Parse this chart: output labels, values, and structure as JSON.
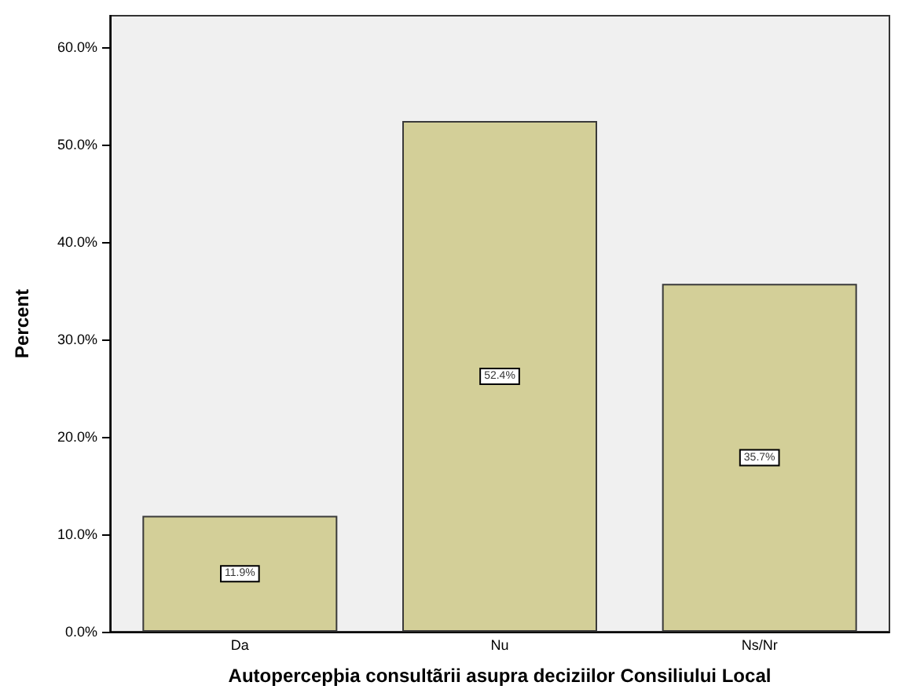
{
  "chart_data": {
    "type": "bar",
    "xlabel": "Autopercepþia consultãrii asupra deciziilor Consiliului Local",
    "ylabel": "Percent",
    "categories": [
      "Da",
      "Nu",
      "Ns/Nr"
    ],
    "series": [
      {
        "color": "#d3cf98",
        "values": [
          11.9,
          52.4,
          35.7
        ],
        "value_labels": [
          "11.9%",
          "52.4%",
          "35.7%"
        ]
      }
    ],
    "ylim": [
      0,
      63.2
    ],
    "yticks": [
      {
        "value": 0,
        "label": "0.0%"
      },
      {
        "value": 10,
        "label": "10.0%"
      },
      {
        "value": 20,
        "label": "20.0%"
      },
      {
        "value": 30,
        "label": "30.0%"
      },
      {
        "value": 40,
        "label": "40.0%"
      },
      {
        "value": 50,
        "label": "50.0%"
      },
      {
        "value": 60,
        "label": "60.0%"
      }
    ],
    "grid": false
  }
}
